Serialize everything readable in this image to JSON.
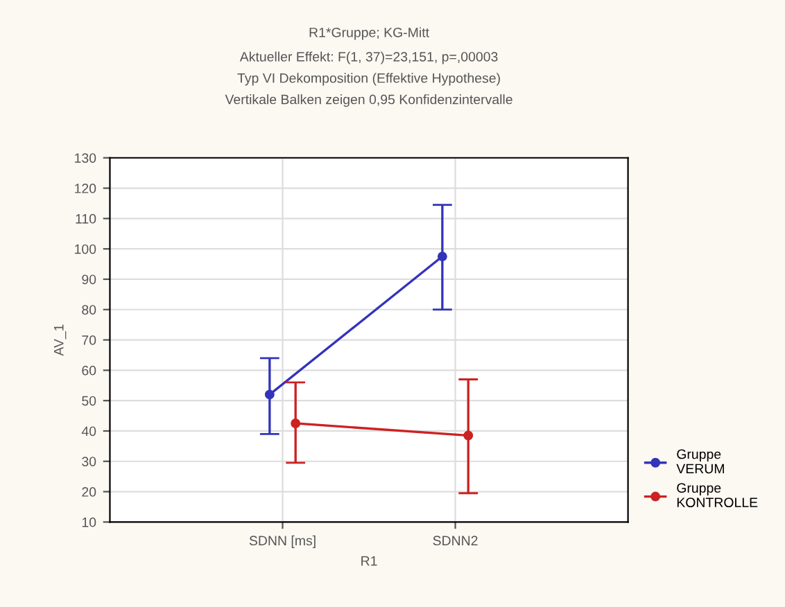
{
  "chart_data": {
    "type": "line",
    "title": "R1*Gruppe; KG-Mitt",
    "subtitle": "Aktueller Effekt: F(1, 37)=23,151, p=,00003\nTyp VI Dekomposition (Effektive Hypothese)\nVertikale Balken zeigen 0,95 Konfidenzintervalle",
    "xlabel": "R1",
    "ylabel": "AV_1",
    "categories": [
      "SDNN [ms]",
      "SDNN2"
    ],
    "series": [
      {
        "name": "Gruppe\nVERUM",
        "color": "#3333bb",
        "values": [
          52,
          97.5
        ],
        "errors": [
          [
            39,
            64
          ],
          [
            80,
            114.5
          ]
        ]
      },
      {
        "name": "Gruppe\nKONTROLLE",
        "color": "#cc2222",
        "values": [
          42.5,
          38.5
        ],
        "errors": [
          [
            29.5,
            56
          ],
          [
            19.5,
            57
          ]
        ]
      }
    ],
    "ylim": [
      10,
      130
    ],
    "yticks": [
      10,
      20,
      30,
      40,
      50,
      60,
      70,
      80,
      90,
      100,
      110,
      120,
      130
    ],
    "grid": true,
    "legend": "bottom right",
    "marker": "circle",
    "line_style": "solid"
  }
}
